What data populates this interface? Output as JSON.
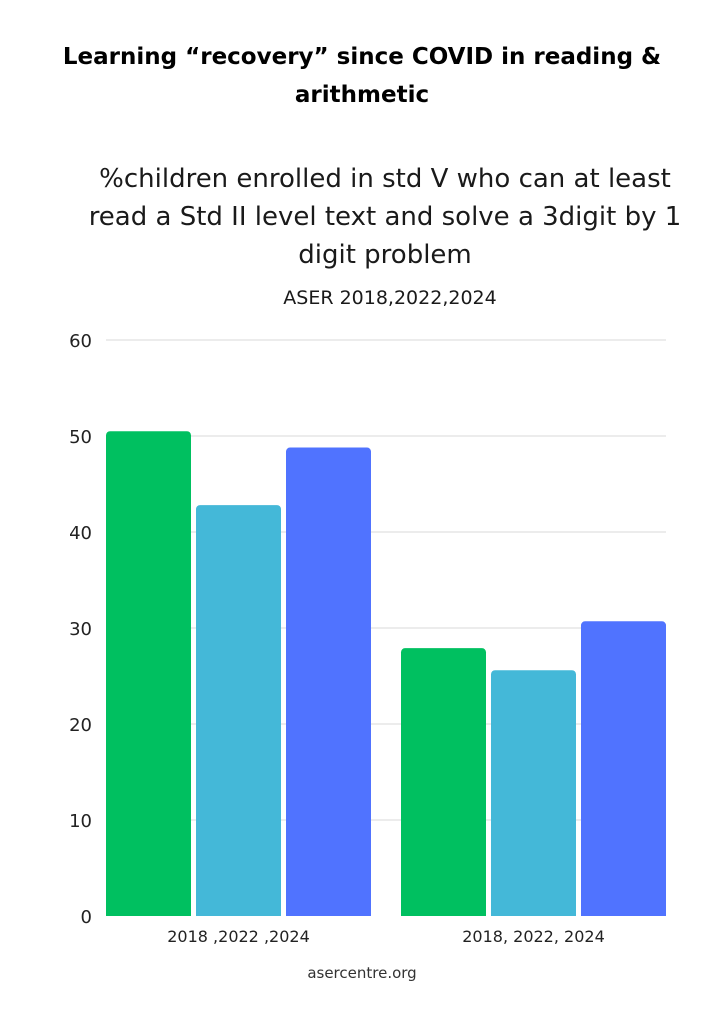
{
  "title": "Learning “recovery” since COVID in reading & arithmetic",
  "subtitle": "%children enrolled in std V who can at least read a Std II level text and solve a 3digit by 1 digit problem",
  "source_line": "ASER 2018,2022,2024",
  "footer": "asercentre.org",
  "colors": {
    "y2018": "#00c060",
    "y2022": "#44b8d8",
    "y2024": "#5073ff",
    "grid": "#d9d9d9"
  },
  "chart_data": {
    "type": "bar",
    "title": "",
    "xlabel": "",
    "ylabel": "",
    "ylim": [
      0,
      60
    ],
    "yticks": [
      0,
      10,
      20,
      30,
      40,
      50,
      60
    ],
    "grid": true,
    "categories": [
      "2018 ,2022 ,2024",
      "2018, 2022, 2024"
    ],
    "series": [
      {
        "values": [
          50.5,
          27.9
        ],
        "color": "#00c060"
      },
      {
        "values": [
          42.8,
          25.6
        ],
        "color": "#44b8d8"
      },
      {
        "values": [
          48.8,
          30.7
        ],
        "color": "#5073ff"
      }
    ]
  }
}
